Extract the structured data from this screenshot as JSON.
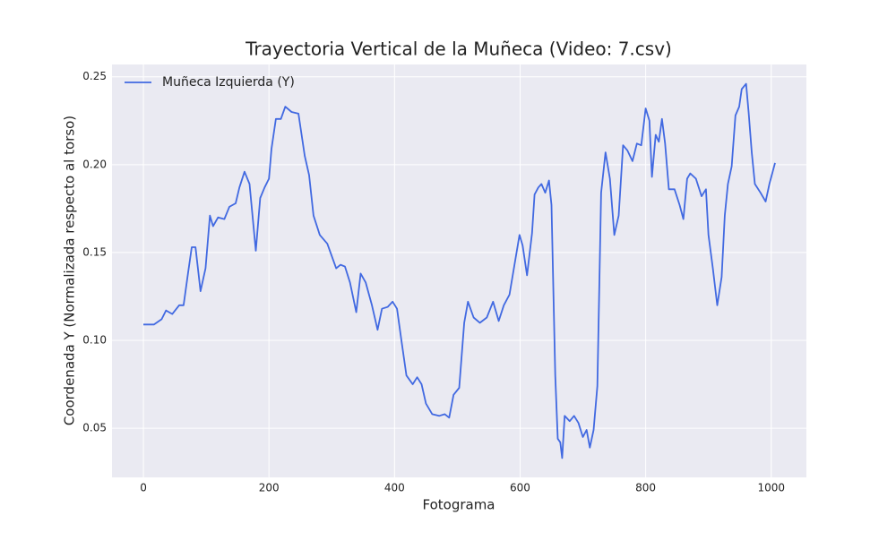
{
  "chart_data": {
    "type": "line",
    "title": "Trayectoria Vertical de la Muñeca (Video: 7.csv)",
    "x_label": "Fotograma",
    "y_label": "Coordenada Y (Normalizada respecto al torso)",
    "x": [
      0,
      17,
      29,
      36,
      46,
      57,
      64,
      71,
      77,
      83,
      91,
      99,
      106,
      111,
      119,
      129,
      137,
      147,
      153,
      161,
      169,
      179,
      186,
      193,
      200,
      204,
      211,
      219,
      226,
      236,
      247,
      257,
      264,
      271,
      281,
      293,
      307,
      314,
      321,
      329,
      339,
      346,
      354,
      364,
      373,
      380,
      389,
      397,
      404,
      411,
      419,
      429,
      436,
      443,
      450,
      460,
      471,
      480,
      487,
      494,
      503,
      511,
      517,
      526,
      536,
      547,
      557,
      566,
      574,
      583,
      591,
      599,
      604,
      611,
      619,
      623,
      629,
      634,
      640,
      646,
      650,
      656,
      660,
      664,
      667,
      671,
      679,
      686,
      693,
      700,
      706,
      711,
      717,
      723,
      729,
      736,
      743,
      750,
      757,
      764,
      771,
      779,
      786,
      793,
      800,
      806,
      810,
      816,
      821,
      826,
      831,
      837,
      846,
      854,
      860,
      866,
      871,
      880,
      889,
      896,
      900,
      907,
      914,
      921,
      926,
      931,
      937,
      943,
      949,
      953,
      960,
      964,
      969,
      974,
      983,
      991,
      997,
      1006
    ],
    "series": [
      {
        "name": "Muñeca Izquierda (Y)",
        "color": "#4169e1",
        "values": [
          0.109,
          0.109,
          0.112,
          0.117,
          0.115,
          0.12,
          0.12,
          0.138,
          0.153,
          0.153,
          0.128,
          0.141,
          0.171,
          0.165,
          0.17,
          0.169,
          0.176,
          0.178,
          0.187,
          0.196,
          0.189,
          0.151,
          0.181,
          0.187,
          0.192,
          0.209,
          0.226,
          0.226,
          0.233,
          0.23,
          0.229,
          0.205,
          0.194,
          0.171,
          0.16,
          0.155,
          0.141,
          0.143,
          0.142,
          0.133,
          0.116,
          0.138,
          0.133,
          0.12,
          0.106,
          0.118,
          0.119,
          0.122,
          0.118,
          0.1,
          0.08,
          0.075,
          0.079,
          0.075,
          0.064,
          0.058,
          0.057,
          0.058,
          0.056,
          0.069,
          0.073,
          0.11,
          0.122,
          0.113,
          0.11,
          0.113,
          0.122,
          0.111,
          0.12,
          0.126,
          0.143,
          0.16,
          0.154,
          0.137,
          0.161,
          0.183,
          0.187,
          0.189,
          0.184,
          0.191,
          0.177,
          0.08,
          0.044,
          0.042,
          0.033,
          0.057,
          0.054,
          0.057,
          0.053,
          0.045,
          0.049,
          0.039,
          0.049,
          0.074,
          0.184,
          0.207,
          0.192,
          0.16,
          0.171,
          0.211,
          0.208,
          0.202,
          0.212,
          0.211,
          0.232,
          0.225,
          0.193,
          0.217,
          0.213,
          0.226,
          0.212,
          0.186,
          0.186,
          0.177,
          0.169,
          0.192,
          0.195,
          0.192,
          0.182,
          0.186,
          0.16,
          0.141,
          0.12,
          0.136,
          0.171,
          0.189,
          0.199,
          0.228,
          0.233,
          0.243,
          0.246,
          0.23,
          0.207,
          0.189,
          0.184,
          0.179,
          0.189,
          0.201
        ]
      }
    ],
    "xlim": [
      -50,
      1056
    ],
    "ylim": [
      0.022,
      0.257
    ],
    "xticks": [
      0,
      200,
      400,
      600,
      800,
      1000
    ],
    "yticks": [
      0.05,
      {
        "value": 0.1,
        "label": "0.10"
      },
      0.15,
      {
        "value": 0.2,
        "label": "0.20"
      },
      0.25
    ],
    "grid": true,
    "legend": "upper left"
  }
}
